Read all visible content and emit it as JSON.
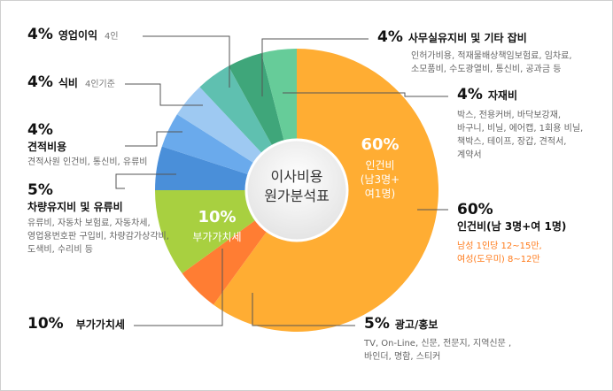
{
  "chart_data": {
    "type": "pie",
    "center_title": [
      "이사비용",
      "원가분석표"
    ],
    "slices": [
      {
        "key": "labor",
        "value": 60,
        "color": "#ffad33"
      },
      {
        "key": "ad",
        "value": 5,
        "color": "#ff7d33"
      },
      {
        "key": "vat",
        "value": 10,
        "color": "#a8d040"
      },
      {
        "key": "vehicle",
        "value": 5,
        "color": "#4a8fd9"
      },
      {
        "key": "estimate",
        "value": 4,
        "color": "#6aaaec"
      },
      {
        "key": "meal",
        "value": 4,
        "color": "#9ec9f2"
      },
      {
        "key": "profit",
        "value": 4,
        "color": "#5fc0b0"
      },
      {
        "key": "office",
        "value": 4,
        "color": "#3fa67a"
      },
      {
        "key": "material",
        "value": 4,
        "color": "#66cc99"
      }
    ],
    "inside_labels": {
      "labor": {
        "pct": "60%",
        "lines": [
          "인건비",
          "(남3명+",
          "여1명)"
        ]
      },
      "vat": {
        "pct": "10%",
        "lines": [
          "부가가치세"
        ]
      }
    }
  },
  "labels": {
    "profit": {
      "pct": "4%",
      "title": "영업이익",
      "note": "4인"
    },
    "meal": {
      "pct": "4%",
      "title": "식비",
      "note": "4인기준"
    },
    "estimate": {
      "pct": "4%",
      "title": "견적비용",
      "desc": [
        "견적사원 인건비, 통신비, 유류비"
      ]
    },
    "vehicle": {
      "pct": "5%",
      "title": "차량유지비  및 유류비",
      "desc": [
        "유류비, 자동차 보험료, 자동차세,",
        "영업용번호판 구입비, 차량감가상각비,",
        "도색비, 수리비 등"
      ]
    },
    "vat": {
      "pct": "10%",
      "title": "부가가치세"
    },
    "office": {
      "pct": "4%",
      "title": "사무실유지비 및 기타 잡비",
      "desc": [
        "인허가비용, 적재물배상책임보험료, 임차료,",
        "소모품비, 수도광열비, 통신비, 공과금 등"
      ]
    },
    "material": {
      "pct": "4%",
      "title": "자재비",
      "desc": [
        "박스, 전용커버,  바닥보강재,",
        "바구니, 비닐, 에어캡, 1회용 비닐,",
        "책박스, 테이프, 장갑,  견적서,",
        "계약서"
      ]
    },
    "labor": {
      "pct": "60%",
      "title": "인건비(남 3명+여 1명)",
      "desc_orange": [
        "남성 1인당 12~15만,",
        "여성(도우미) 8~12만"
      ]
    },
    "ad": {
      "pct": "5%",
      "title": "광고/홍보",
      "desc": [
        "TV, On-Line, 신문, 전문지, 지역신문 ,",
        "바인더, 명함, 스티커"
      ]
    }
  }
}
